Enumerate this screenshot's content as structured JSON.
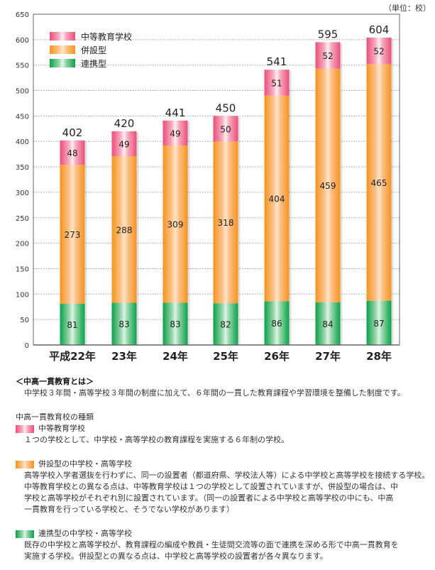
{
  "unit_label": "（単位：校）",
  "legend": [
    {
      "label": "中等教育学校",
      "key": "chuto"
    },
    {
      "label": "併設型",
      "key": "heisetsu"
    },
    {
      "label": "連携型",
      "key": "renkei"
    }
  ],
  "colors": {
    "chuto": "#ec4d78",
    "heisetsu": "#f7931e",
    "renkei": "#0aa14a"
  },
  "chart_data": {
    "type": "bar",
    "stacked": true,
    "title": "",
    "xlabel": "",
    "ylabel": "",
    "unit": "校",
    "categories": [
      "平成22年",
      "23年",
      "24年",
      "25年",
      "26年",
      "27年",
      "28年"
    ],
    "series": [
      {
        "name": "連携型",
        "key": "renkei",
        "values": [
          81,
          83,
          83,
          82,
          86,
          84,
          87
        ]
      },
      {
        "name": "併設型",
        "key": "heisetsu",
        "values": [
          273,
          288,
          309,
          318,
          404,
          459,
          465
        ]
      },
      {
        "name": "中等教育学校",
        "key": "chuto",
        "values": [
          48,
          49,
          49,
          50,
          51,
          52,
          52
        ]
      }
    ],
    "totals": [
      402,
      420,
      441,
      450,
      541,
      595,
      604
    ],
    "ylim": [
      0,
      650
    ],
    "yticks": [
      0,
      50,
      100,
      150,
      200,
      250,
      300,
      350,
      400,
      450,
      500,
      550,
      600,
      650
    ],
    "grid": true,
    "legend_position": "top-left"
  },
  "notes": {
    "about_title": "＜中高一貫教育とは＞",
    "about_text": "中学校３年間・高等学校３年間の制度に加えて、６年間の一貫した教育課程や学習環境を整備した制度です。",
    "types_title": "中高一貫教育校の種類",
    "types": [
      {
        "key": "chuto",
        "heading": "中等教育学校",
        "lines": [
          "１つの学校として、中学校・高等学校の教育課程を実施する６年制の学校。"
        ]
      },
      {
        "key": "heisetsu",
        "heading": "併設型の中学校・高等学校",
        "lines": [
          "高等学校入学者選抜を行わずに、同一の設置者（都道府県、学校法人等）による中学校と高等学校を接続する学校。",
          "中等教育学校との異なる点は、中等教育学校は１つの学校として設置されていますが、併設型の場合は、中",
          "学校と高等学校がそれぞれ別に設置されています。（同一の設置者による中学校と高等学校の中にも、中高",
          "一貫教育を行っている学校と、そうでない学校があります）"
        ]
      },
      {
        "key": "renkei",
        "heading": "連携型の中学校・高等学校",
        "lines": [
          "既存の中学校と高等学校が、教育課程の編成や教員・生徒間交流等の面で連携を深める形で中高一貫教育を",
          "実施する学校。併設型との異なる点は、中学校と高等学校の設置者が各々異なります。"
        ]
      }
    ]
  }
}
